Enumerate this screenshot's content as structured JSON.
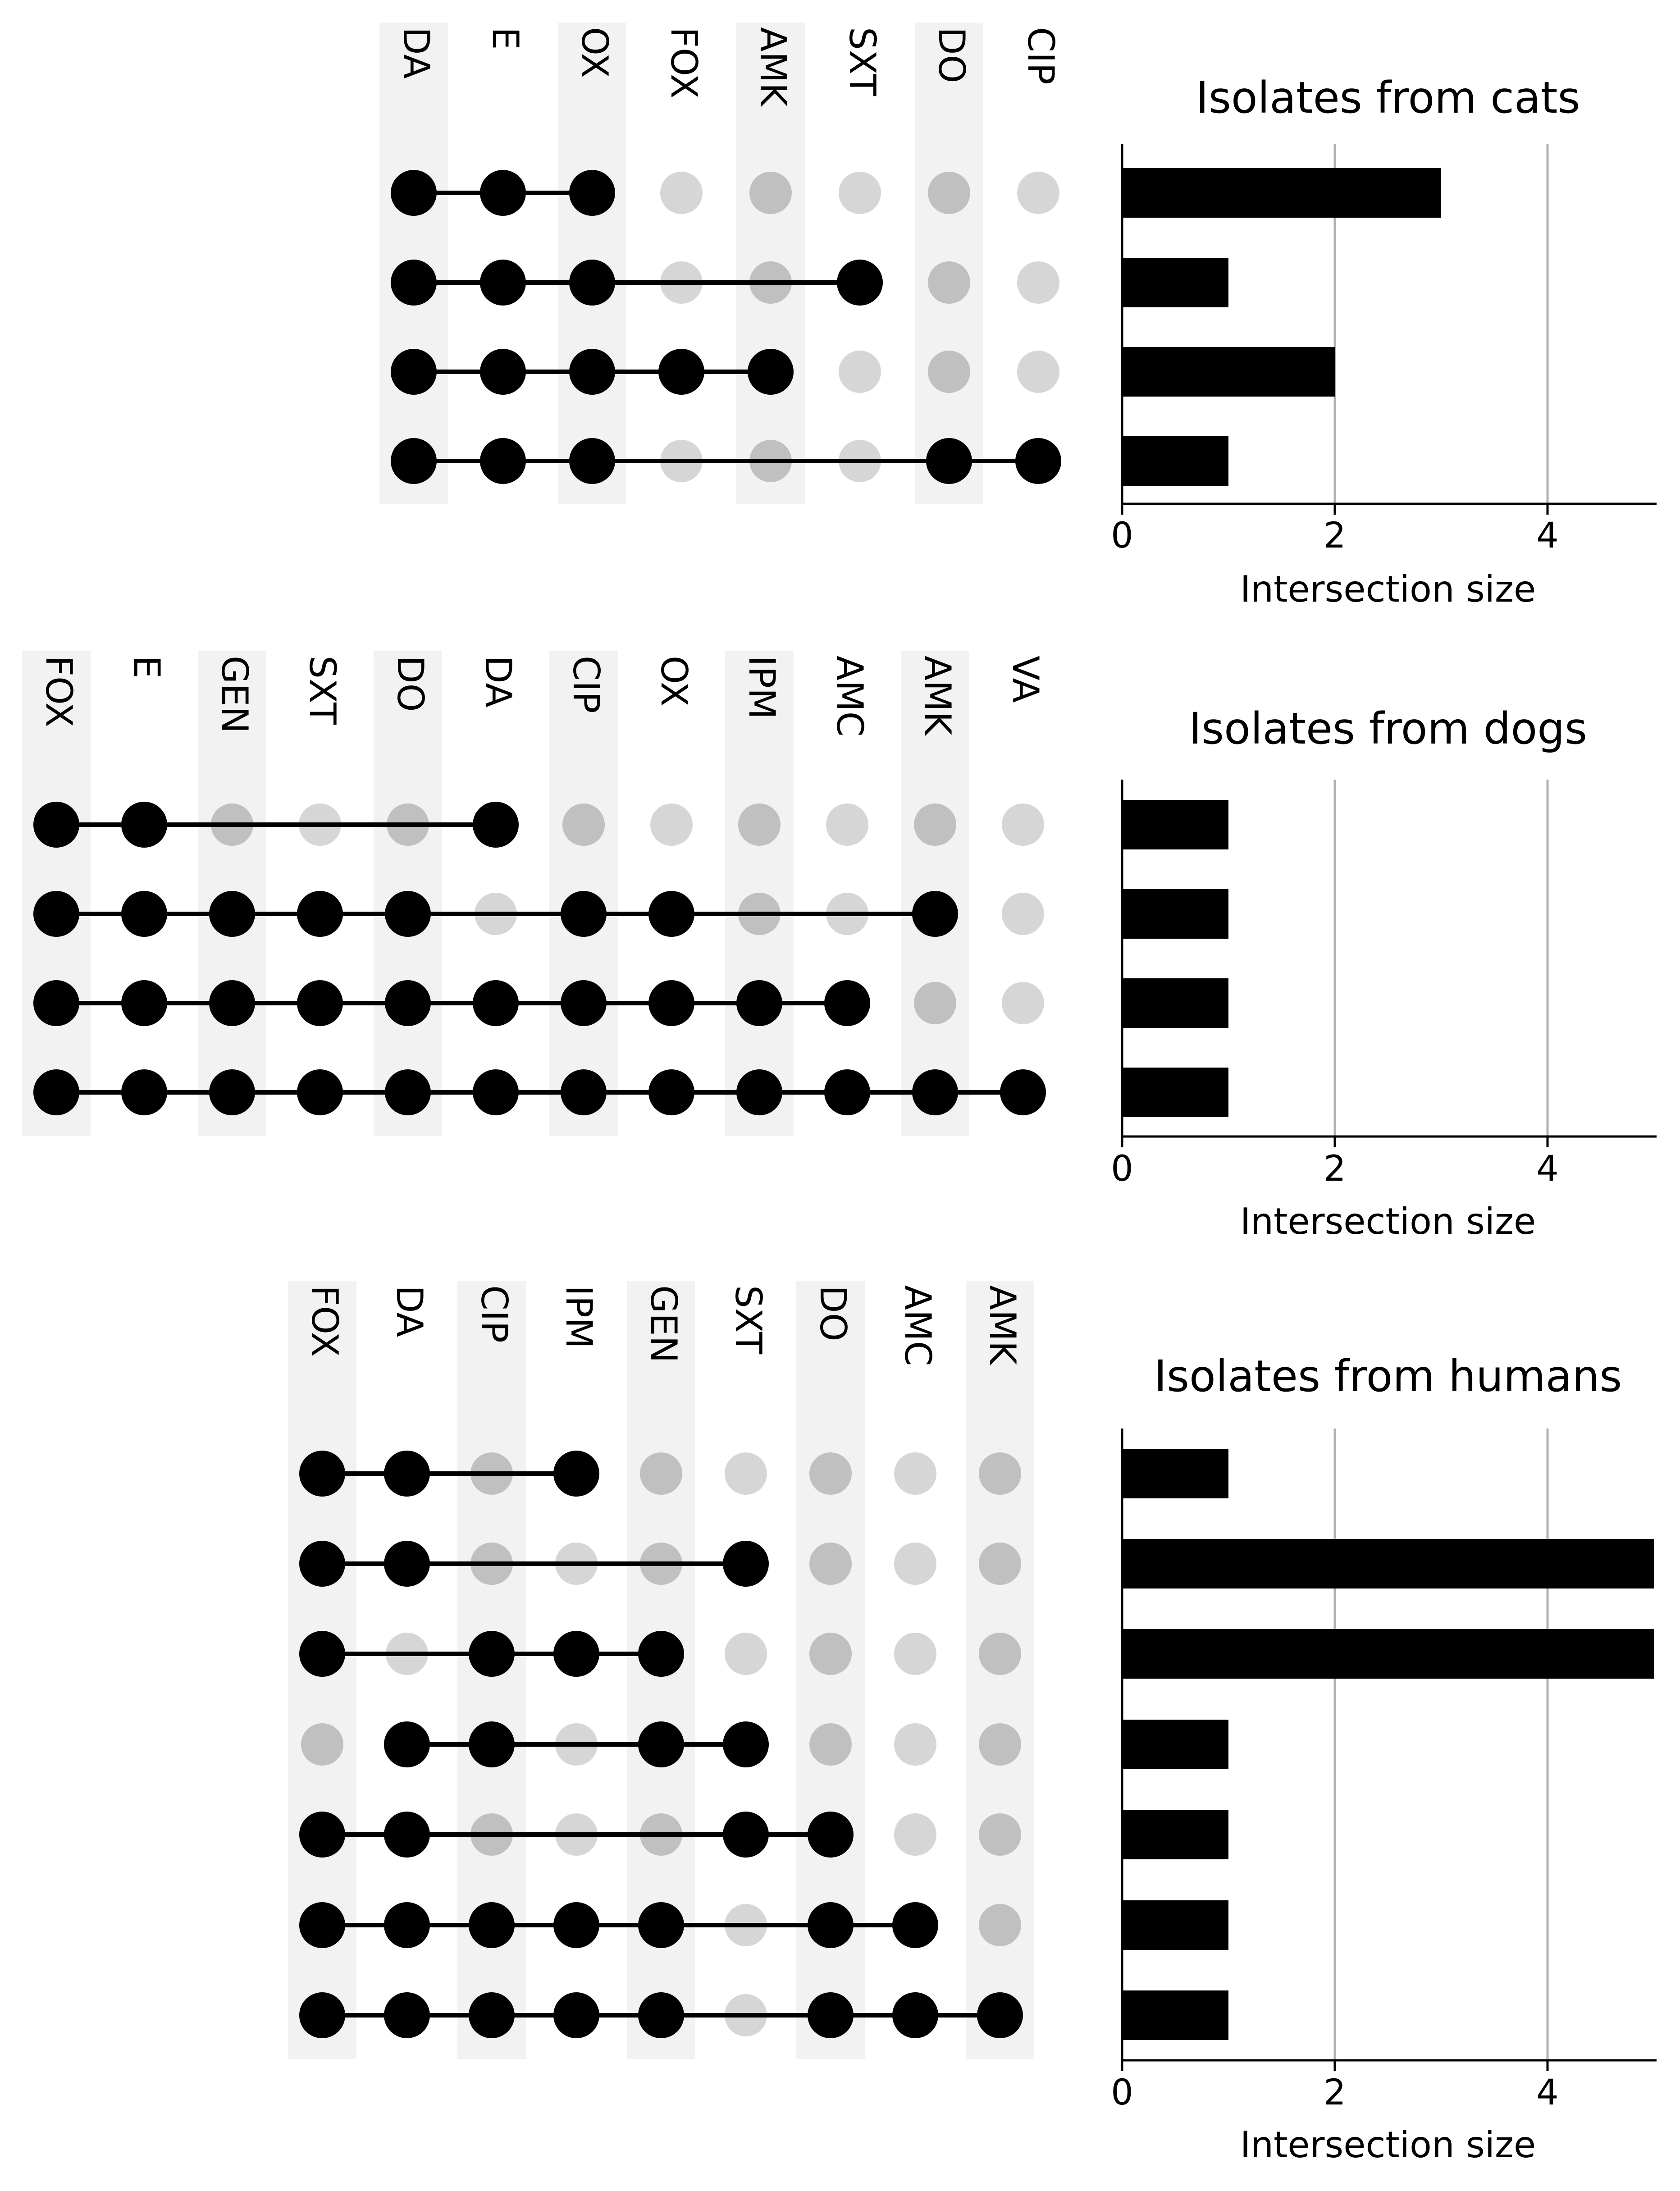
{
  "chart_data": [
    {
      "type": "upset",
      "title": "Isolates from cats",
      "xlabel": "Intersection size",
      "xlim": [
        0,
        5
      ],
      "xticks": [
        0,
        2,
        4
      ],
      "grid": true,
      "sets": [
        "DA",
        "E",
        "OX",
        "FOX",
        "AMK",
        "SXT",
        "DO",
        "CIP"
      ],
      "intersections": [
        {
          "members": [
            "DA",
            "E",
            "OX"
          ],
          "size": 3
        },
        {
          "members": [
            "DA",
            "E",
            "OX",
            "SXT"
          ],
          "size": 1
        },
        {
          "members": [
            "DA",
            "E",
            "OX",
            "FOX",
            "AMK"
          ],
          "size": 2
        },
        {
          "members": [
            "DA",
            "E",
            "OX",
            "DO",
            "CIP"
          ],
          "size": 1
        }
      ]
    },
    {
      "type": "upset",
      "title": "Isolates from dogs",
      "xlabel": "Intersection size",
      "xlim": [
        0,
        5
      ],
      "xticks": [
        0,
        2,
        4
      ],
      "grid": true,
      "sets": [
        "FOX",
        "E",
        "GEN",
        "SXT",
        "DO",
        "DA",
        "CIP",
        "OX",
        "IPM",
        "AMC",
        "AMK",
        "VA"
      ],
      "intersections": [
        {
          "members": [
            "FOX",
            "E",
            "DA"
          ],
          "size": 1
        },
        {
          "members": [
            "FOX",
            "E",
            "GEN",
            "SXT",
            "DO",
            "CIP",
            "OX",
            "AMK"
          ],
          "size": 1
        },
        {
          "members": [
            "FOX",
            "E",
            "GEN",
            "SXT",
            "DO",
            "DA",
            "CIP",
            "OX",
            "IPM",
            "AMC"
          ],
          "size": 1
        },
        {
          "members": [
            "FOX",
            "E",
            "GEN",
            "SXT",
            "DO",
            "DA",
            "CIP",
            "OX",
            "IPM",
            "AMC",
            "AMK",
            "VA"
          ],
          "size": 1
        }
      ]
    },
    {
      "type": "upset",
      "title": "Isolates from humans",
      "xlabel": "Intersection size",
      "xlim": [
        0,
        5
      ],
      "xticks": [
        0,
        2,
        4
      ],
      "grid": true,
      "sets": [
        "FOX",
        "DA",
        "CIP",
        "IPM",
        "GEN",
        "SXT",
        "DO",
        "AMC",
        "AMK"
      ],
      "intersections": [
        {
          "members": [
            "FOX",
            "DA",
            "IPM"
          ],
          "size": 1
        },
        {
          "members": [
            "FOX",
            "DA",
            "SXT"
          ],
          "size": 5
        },
        {
          "members": [
            "FOX",
            "CIP",
            "IPM",
            "GEN"
          ],
          "size": 5
        },
        {
          "members": [
            "DA",
            "CIP",
            "GEN",
            "SXT"
          ],
          "size": 1
        },
        {
          "members": [
            "FOX",
            "DA",
            "SXT",
            "DO"
          ],
          "size": 1
        },
        {
          "members": [
            "FOX",
            "DA",
            "CIP",
            "IPM",
            "GEN",
            "DO",
            "AMC"
          ],
          "size": 1
        },
        {
          "members": [
            "FOX",
            "DA",
            "CIP",
            "IPM",
            "GEN",
            "DO",
            "AMC",
            "AMK"
          ],
          "size": 1
        }
      ]
    }
  ],
  "colors": {
    "active_dot": "#000000",
    "inactive_dot_on_band": "#c0c0c0",
    "inactive_dot_off_band": "#d6d6d6",
    "band": "#f2f2f2",
    "bar": "#000000",
    "grid": "#b0b0b0"
  }
}
